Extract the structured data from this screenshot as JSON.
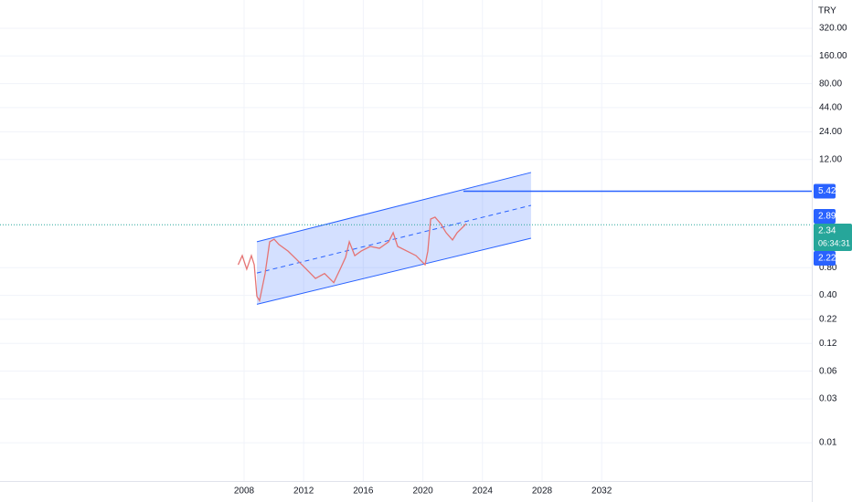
{
  "chart_data": {
    "type": "line",
    "log_scale": true,
    "grid": true,
    "currency": "TRY",
    "color": "#e57373",
    "x": [
      2007.6,
      2007.88,
      2008.18,
      2008.49,
      2008.68,
      2008.86,
      2009.04,
      2009.41,
      2009.72,
      2010.02,
      2010.33,
      2010.95,
      2011.56,
      2012.18,
      2012.79,
      2013.4,
      2014.02,
      2014.45,
      2014.82,
      2015.06,
      2015.43,
      2015.86,
      2016.47,
      2017.09,
      2017.7,
      2018.01,
      2018.31,
      2018.93,
      2019.54,
      2020.15,
      2020.33,
      2020.52,
      2020.82,
      2021.19,
      2021.56,
      2021.99,
      2022.3,
      2022.61,
      2022.91
    ],
    "values": [
      0.86,
      1.08,
      0.77,
      1.08,
      0.86,
      0.39,
      0.35,
      0.69,
      1.53,
      1.63,
      1.43,
      1.21,
      0.97,
      0.77,
      0.61,
      0.69,
      0.55,
      0.77,
      1.04,
      1.53,
      1.08,
      1.21,
      1.36,
      1.3,
      1.53,
      1.92,
      1.36,
      1.21,
      1.08,
      0.86,
      1.21,
      2.7,
      2.83,
      2.41,
      1.92,
      1.6,
      1.92,
      2.15,
      2.41
    ],
    "xlim": [
      1991.62,
      2046.1
    ],
    "ylim": [
      0.00384,
      649
    ],
    "xticks": [
      2008,
      2012,
      2016,
      2020,
      2024,
      2028,
      2032
    ],
    "yticks": [
      {
        "value": 320,
        "label": "320.00"
      },
      {
        "value": 160,
        "label": "160.00"
      },
      {
        "value": 80,
        "label": "80.00"
      },
      {
        "value": 44,
        "label": "44.00"
      },
      {
        "value": 24,
        "label": "24.00"
      },
      {
        "value": 12,
        "label": "12.00"
      },
      {
        "value": 0.8,
        "label": "0.80"
      },
      {
        "value": 0.4,
        "label": "0.40"
      },
      {
        "value": 0.22,
        "label": "0.22"
      },
      {
        "value": 0.12,
        "label": "0.12"
      },
      {
        "value": 0.06,
        "label": "0.06"
      },
      {
        "value": 0.03,
        "label": "0.03"
      },
      {
        "value": 0.01,
        "label": "0.01"
      }
    ],
    "channel": {
      "start": 2008.86,
      "end": 2027.26,
      "upper": [
        1.53,
        8.67
      ],
      "lower": [
        0.32,
        1.67
      ],
      "upper_now": 2.89,
      "lower_now": 2.22,
      "color": "#2962ff"
    },
    "ray": {
      "start": 2022.72,
      "value": 5.42,
      "color": "#2962ff"
    },
    "last_price": 2.34,
    "last_color": "#26a69a",
    "countdown": "06:34:31"
  }
}
